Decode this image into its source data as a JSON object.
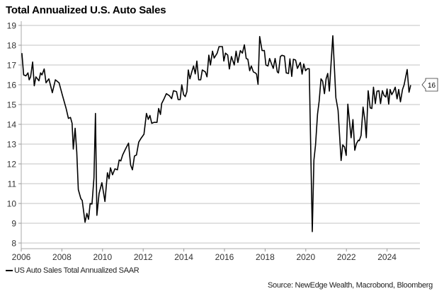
{
  "chart_data": {
    "type": "line",
    "title": "Total Annualized U.S. Auto Sales",
    "xlabel": "",
    "ylabel": "",
    "xlim": [
      2006,
      2025.6
    ],
    "ylim": [
      7.7,
      19
    ],
    "xticks": [
      "2006",
      "2008",
      "2010",
      "2012",
      "2014",
      "2016",
      "2018",
      "2020",
      "2022",
      "2024"
    ],
    "yticks": [
      "8",
      "9",
      "10",
      "11",
      "12",
      "13",
      "14",
      "15",
      "16",
      "17",
      "18",
      "19"
    ],
    "grid": true,
    "legend_position": "bottom-left",
    "last_value_label": "16",
    "series": [
      {
        "name": "US Auto Sales Total Annualized SAAR",
        "color": "#000000",
        "x": [
          2006.03,
          2006.12,
          2006.23,
          2006.33,
          2006.39,
          2006.46,
          2006.56,
          2006.64,
          2006.72,
          2006.87,
          2006.95,
          2007.02,
          2007.13,
          2007.22,
          2007.36,
          2007.53,
          2007.68,
          2007.86,
          2008.03,
          2008.21,
          2008.32,
          2008.42,
          2008.5,
          2008.56,
          2008.65,
          2008.73,
          2008.81,
          2008.93,
          2009.0,
          2009.14,
          2009.23,
          2009.31,
          2009.39,
          2009.48,
          2009.58,
          2009.65,
          2009.72,
          2009.83,
          2009.97,
          2010.12,
          2010.24,
          2010.32,
          2010.39,
          2010.49,
          2010.61,
          2010.73,
          2010.82,
          2010.9,
          2010.99,
          2011.13,
          2011.28,
          2011.38,
          2011.47,
          2011.57,
          2011.67,
          2011.78,
          2011.9,
          2012.04,
          2012.16,
          2012.25,
          2012.33,
          2012.42,
          2012.53,
          2012.68,
          2012.76,
          2012.85,
          2012.91,
          2013.03,
          2013.14,
          2013.29,
          2013.4,
          2013.49,
          2013.64,
          2013.72,
          2013.82,
          2013.9,
          2013.99,
          2014.07,
          2014.15,
          2014.22,
          2014.3,
          2014.39,
          2014.48,
          2014.56,
          2014.64,
          2014.73,
          2014.83,
          2014.91,
          2015.06,
          2015.14,
          2015.23,
          2015.31,
          2015.41,
          2015.49,
          2015.64,
          2015.73,
          2015.9,
          2015.97,
          2016.05,
          2016.16,
          2016.24,
          2016.34,
          2016.48,
          2016.57,
          2016.66,
          2016.78,
          2016.88,
          2016.98,
          2017.07,
          2017.15,
          2017.24,
          2017.32,
          2017.42,
          2017.52,
          2017.58,
          2017.65,
          2017.73,
          2017.85,
          2017.96,
          2018.04,
          2018.14,
          2018.22,
          2018.31,
          2018.4,
          2018.49,
          2018.6,
          2018.66,
          2018.75,
          2018.83,
          2018.95,
          2019.04,
          2019.15,
          2019.22,
          2019.31,
          2019.39,
          2019.5,
          2019.59,
          2019.73,
          2019.82,
          2019.9,
          2019.99,
          2020.08,
          2020.17,
          2020.32,
          2020.4,
          2020.48,
          2020.58,
          2020.66,
          2020.75,
          2020.83,
          2020.92,
          2021.0,
          2021.08,
          2021.16,
          2021.24,
          2021.33,
          2021.48,
          2021.59,
          2021.74,
          2021.82,
          2021.91,
          2021.99,
          2022.07,
          2022.23,
          2022.32,
          2022.41,
          2022.49,
          2022.59,
          2022.63,
          2022.72,
          2022.82,
          2022.91,
          2022.98,
          2023.07,
          2023.17,
          2023.25,
          2023.33,
          2023.42,
          2023.5,
          2023.6,
          2023.68,
          2023.77,
          2023.85,
          2023.94,
          2024.0,
          2024.08,
          2024.15,
          2024.23,
          2024.32,
          2024.4,
          2024.49,
          2024.57,
          2024.66,
          2024.76,
          2024.84,
          2024.99,
          2025.08,
          2025.16
        ],
        "y": [
          17.6,
          16.5,
          16.45,
          16.6,
          16.25,
          16.4,
          17.15,
          15.95,
          16.4,
          16.2,
          16.6,
          16.5,
          16.8,
          16.1,
          16.3,
          15.6,
          16.25,
          16.1,
          15.45,
          14.8,
          14.3,
          14.35,
          14.05,
          12.75,
          13.8,
          12.6,
          10.7,
          10.25,
          10.15,
          9.05,
          9.5,
          9.2,
          10.0,
          9.97,
          11.3,
          14.55,
          9.4,
          10.5,
          11.05,
          10.1,
          11.55,
          11.25,
          11.8,
          11.45,
          11.75,
          11.7,
          12.2,
          12.15,
          12.45,
          12.75,
          13.05,
          11.95,
          11.7,
          12.4,
          12.45,
          13.1,
          13.3,
          13.5,
          14.55,
          14.25,
          14.45,
          14.05,
          14.1,
          14.1,
          14.8,
          14.5,
          15.05,
          15.3,
          15.55,
          15.45,
          15.3,
          15.7,
          15.65,
          15.25,
          15.25,
          16.0,
          15.5,
          15.4,
          15.65,
          16.75,
          16.3,
          16.65,
          16.95,
          16.55,
          17.2,
          16.25,
          16.25,
          16.75,
          16.65,
          16.4,
          17.5,
          17.0,
          17.7,
          17.35,
          17.6,
          17.93,
          17.93,
          17.2,
          17.6,
          17.5,
          16.8,
          17.43,
          17.0,
          17.7,
          17.13,
          17.73,
          17.6,
          18.02,
          17.33,
          17.29,
          16.71,
          16.95,
          16.65,
          16.6,
          16.54,
          16.02,
          18.44,
          17.73,
          17.73,
          17.0,
          16.95,
          17.33,
          17.07,
          16.83,
          17.33,
          16.65,
          16.6,
          17.43,
          17.49,
          17.45,
          16.6,
          16.57,
          17.31,
          16.42,
          17.29,
          17.25,
          16.83,
          17.13,
          16.54,
          17.05,
          16.71,
          16.81,
          16.81,
          8.58,
          12.19,
          12.96,
          14.51,
          15.17,
          16.3,
          16.18,
          15.55,
          16.3,
          16.57,
          15.68,
          17.01,
          18.48,
          15.35,
          14.71,
          12.17,
          12.96,
          12.85,
          12.43,
          15.02,
          13.32,
          14.24,
          12.69,
          13.02,
          13.2,
          13.17,
          13.44,
          14.87,
          14.21,
          13.32,
          15.7,
          14.83,
          14.8,
          15.88,
          15.05,
          15.67,
          15.7,
          15.05,
          15.7,
          15.46,
          15.38,
          15.79,
          15.02,
          15.76,
          15.5,
          15.67,
          15.88,
          15.29,
          15.76,
          15.14,
          15.76,
          16.0,
          16.77,
          15.62,
          15.98
        ]
      }
    ],
    "source": "Source: NewEdge Wealth, Macrobond, Bloomberg"
  }
}
